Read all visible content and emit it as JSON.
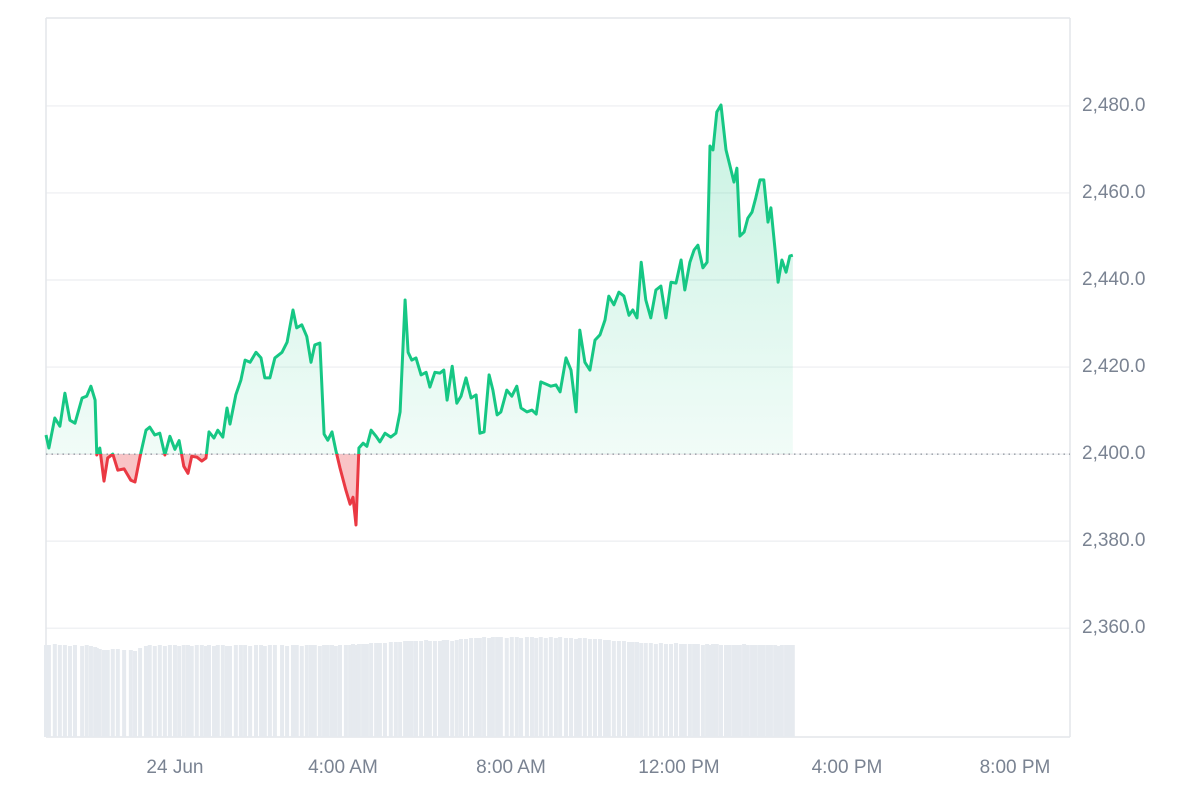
{
  "chart_data": {
    "type": "line",
    "x": [
      -3.07,
      -3.0,
      -2.86,
      -2.74,
      -2.62,
      -2.5,
      -2.38,
      -2.21,
      -2.1,
      -2.0,
      -1.9,
      -1.86,
      -1.79,
      -1.69,
      -1.6,
      -1.48,
      -1.36,
      -1.21,
      -1.05,
      -0.95,
      -0.83,
      -0.69,
      -0.6,
      -0.48,
      -0.36,
      -0.24,
      -0.12,
      0,
      0.1,
      0.21,
      0.31,
      0.4,
      0.52,
      0.64,
      0.74,
      0.81,
      0.93,
      1.02,
      1.14,
      1.24,
      1.31,
      1.45,
      1.57,
      1.67,
      1.79,
      1.93,
      2.05,
      2.14,
      2.26,
      2.38,
      2.55,
      2.67,
      2.81,
      2.9,
      3.02,
      3.14,
      3.24,
      3.33,
      3.45,
      3.55,
      3.64,
      3.74,
      3.83,
      3.93,
      4.07,
      4.17,
      4.24,
      4.31,
      4.38,
      4.48,
      4.57,
      4.67,
      4.79,
      4.88,
      5.0,
      5.14,
      5.26,
      5.36,
      5.48,
      5.55,
      5.64,
      5.74,
      5.86,
      5.98,
      6.07,
      6.19,
      6.31,
      6.4,
      6.48,
      6.6,
      6.71,
      6.81,
      6.93,
      7.05,
      7.17,
      7.26,
      7.36,
      7.48,
      7.57,
      7.67,
      7.76,
      7.9,
      8.02,
      8.14,
      8.24,
      8.38,
      8.5,
      8.6,
      8.71,
      8.83,
      8.95,
      9.07,
      9.17,
      9.31,
      9.43,
      9.55,
      9.64,
      9.76,
      9.88,
      10.0,
      10.12,
      10.24,
      10.33,
      10.45,
      10.57,
      10.69,
      10.81,
      10.9,
      11.0,
      11.1,
      11.21,
      11.33,
      11.45,
      11.57,
      11.69,
      11.81,
      11.93,
      12.05,
      12.14,
      12.26,
      12.36,
      12.45,
      12.57,
      12.67,
      12.74,
      12.81,
      12.9,
      13.0,
      13.12,
      13.21,
      13.31,
      13.38,
      13.45,
      13.55,
      13.64,
      13.74,
      13.83,
      13.93,
      14.02,
      14.12,
      14.19,
      14.29,
      14.36,
      14.45,
      14.55,
      14.64,
      14.71
    ],
    "series": [
      {
        "color": "#16c784",
        "negative_color": "#ea3943",
        "values": [
          2404.4,
          2401.4,
          2408.3,
          2406.4,
          2414.0,
          2407.8,
          2407.1,
          2412.9,
          2413.3,
          2415.6,
          2412.4,
          2399.8,
          2401.4,
          2393.8,
          2399.1,
          2400.0,
          2396.3,
          2396.6,
          2394.0,
          2393.6,
          2399.5,
          2405.5,
          2406.2,
          2404.4,
          2404.8,
          2399.8,
          2404.1,
          2401.1,
          2403.1,
          2397.2,
          2395.6,
          2399.5,
          2399.3,
          2398.4,
          2399.1,
          2405.1,
          2403.7,
          2405.5,
          2403.9,
          2410.6,
          2406.9,
          2413.6,
          2417.0,
          2421.6,
          2421.1,
          2423.4,
          2422.1,
          2417.5,
          2417.5,
          2422.1,
          2423.4,
          2425.7,
          2433.1,
          2429.0,
          2429.7,
          2427.0,
          2421.1,
          2425.1,
          2425.5,
          2404.6,
          2403.2,
          2405.1,
          2400.9,
          2396.8,
          2391.7,
          2388.5,
          2390.1,
          2383.7,
          2401.4,
          2402.5,
          2401.8,
          2405.5,
          2404.1,
          2402.8,
          2404.8,
          2403.9,
          2404.8,
          2409.7,
          2435.4,
          2423.4,
          2421.6,
          2422.1,
          2418.2,
          2418.8,
          2415.4,
          2418.8,
          2418.6,
          2419.3,
          2412.4,
          2420.2,
          2411.7,
          2413.3,
          2417.5,
          2412.9,
          2413.6,
          2404.8,
          2405.1,
          2418.2,
          2414.7,
          2409.0,
          2409.7,
          2414.7,
          2413.3,
          2415.6,
          2410.6,
          2409.7,
          2410.1,
          2409.2,
          2416.6,
          2416.1,
          2415.6,
          2415.9,
          2414.3,
          2422.1,
          2419.3,
          2409.7,
          2428.5,
          2421.1,
          2419.3,
          2426.2,
          2427.4,
          2430.8,
          2436.3,
          2434.3,
          2437.2,
          2436.3,
          2431.9,
          2433.1,
          2431.3,
          2444.1,
          2435.4,
          2431.3,
          2437.7,
          2438.6,
          2431.3,
          2439.5,
          2439.3,
          2444.6,
          2437.7,
          2444.1,
          2446.9,
          2448.0,
          2442.8,
          2444.1,
          2470.8,
          2469.9,
          2478.6,
          2480.2,
          2469.9,
          2466.4,
          2462.5,
          2465.7,
          2450.1,
          2451.0,
          2454.2,
          2455.6,
          2458.9,
          2463.0,
          2463.0,
          2453.3,
          2456.6,
          2446.9,
          2439.5,
          2444.6,
          2441.8,
          2445.5,
          2445.7
        ]
      }
    ],
    "volume": {
      "color": "#e6eaef",
      "values": [
        92,
        92,
        93,
        92,
        92,
        91,
        92,
        91,
        92,
        91,
        90,
        89,
        88,
        87,
        87,
        88,
        88,
        87,
        87,
        86,
        89,
        91,
        92,
        91,
        92,
        91,
        92,
        92,
        91,
        92,
        92,
        91,
        92,
        92,
        91,
        92,
        91,
        92,
        92,
        91,
        91,
        92,
        92,
        92,
        91,
        92,
        92,
        91,
        92,
        92,
        92,
        91,
        92,
        92,
        91,
        92,
        92,
        92,
        91,
        92,
        92,
        92,
        91,
        92,
        92,
        92,
        93,
        92,
        93,
        93,
        93,
        94,
        94,
        94,
        94,
        95,
        95,
        95,
        96,
        96,
        96,
        96,
        96,
        97,
        96,
        96,
        96,
        97,
        97,
        96,
        97,
        98,
        98,
        99,
        99,
        99,
        100,
        99,
        100,
        100,
        100,
        99,
        100,
        100,
        99,
        100,
        100,
        99,
        100,
        99,
        100,
        99,
        100,
        99,
        99,
        98,
        99,
        99,
        98,
        98,
        98,
        97,
        97,
        96,
        96,
        96,
        95,
        95,
        95,
        94,
        94,
        94,
        93,
        94,
        93,
        93,
        94,
        93,
        93,
        93,
        93,
        93,
        92,
        93,
        92,
        93,
        93,
        92,
        92,
        92,
        92,
        92,
        92,
        93,
        92,
        92,
        92,
        92,
        92,
        92,
        92,
        92,
        91,
        92,
        92,
        92,
        92
      ]
    },
    "baseline": 2400,
    "xlim": [
      -3.07,
      21.31
    ],
    "xticks": [
      {
        "value": 0,
        "label": "24 Jun"
      },
      {
        "value": 4,
        "label": "4:00 AM"
      },
      {
        "value": 8,
        "label": "8:00 AM"
      },
      {
        "value": 12,
        "label": "12:00 PM"
      },
      {
        "value": 16,
        "label": "4:00 PM"
      },
      {
        "value": 20,
        "label": "8:00 PM"
      }
    ],
    "ylim": [
      2335,
      2500.2
    ],
    "yticks": [
      {
        "value": 2360,
        "label": "2,360.0"
      },
      {
        "value": 2380,
        "label": "2,380.0"
      },
      {
        "value": 2400,
        "label": "2,400.0"
      },
      {
        "value": 2420,
        "label": "2,420.0"
      },
      {
        "value": 2440,
        "label": "2,440.0"
      },
      {
        "value": 2460,
        "label": "2,460.0"
      },
      {
        "value": 2480,
        "label": "2,480.0"
      }
    ],
    "grid": true
  }
}
